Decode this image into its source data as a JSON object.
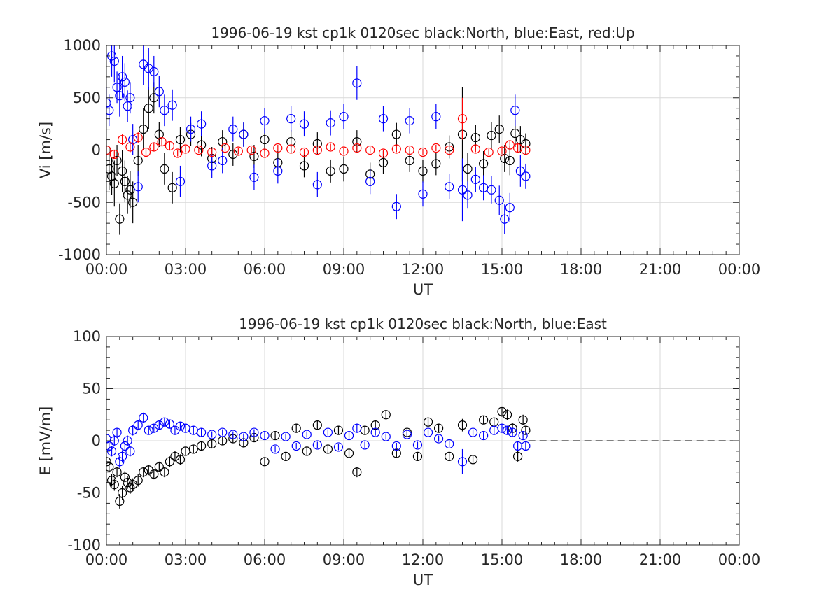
{
  "colors": {
    "north": "#000000",
    "east": "#0000ff",
    "up": "#ff0000",
    "grid": "#d9d9d9",
    "axis": "#262626",
    "zero_line": "#000000"
  },
  "chart_data": [
    {
      "type": "scatter",
      "title": "1996-06-19 kst cp1k 0120sec black:North, blue:East, red:Up",
      "xlabel": "UT",
      "ylabel": "Vi [m/s]",
      "xlim": [
        0,
        24
      ],
      "ylim": [
        -1000,
        1000
      ],
      "xticks": [
        0,
        3,
        6,
        9,
        12,
        15,
        18,
        21,
        24
      ],
      "xticklabels": [
        "00:00",
        "03:00",
        "06:00",
        "09:00",
        "12:00",
        "15:00",
        "18:00",
        "21:00",
        "00:00"
      ],
      "yticks": [
        -1000,
        -500,
        0,
        500,
        1000
      ],
      "yticklabels": [
        "-1000",
        "-500",
        "0",
        "500",
        "1000"
      ],
      "grid": true,
      "marker": "open-circle with vertical error bars",
      "reference_line": {
        "y": 0,
        "style": "dashed",
        "from_x": 16.0,
        "to_x": 24
      },
      "series": [
        {
          "name": "North",
          "color": "black",
          "x": [
            0.0,
            0.1,
            0.2,
            0.3,
            0.4,
            0.5,
            0.6,
            0.7,
            0.8,
            0.9,
            1.0,
            1.2,
            1.4,
            1.6,
            1.8,
            2.0,
            2.2,
            2.5,
            2.8,
            3.2,
            3.6,
            4.0,
            4.4,
            4.8,
            5.2,
            5.6,
            6.0,
            6.5,
            7.0,
            7.5,
            8.0,
            8.5,
            9.0,
            9.5,
            10.0,
            10.5,
            11.0,
            11.5,
            12.0,
            12.5,
            13.0,
            13.5,
            13.7,
            14.0,
            14.3,
            14.6,
            14.9,
            15.1,
            15.3,
            15.5,
            15.7,
            15.9
          ],
          "y": [
            0,
            -180,
            -250,
            -320,
            -100,
            -660,
            -200,
            -300,
            -430,
            -380,
            -500,
            -100,
            200,
            400,
            500,
            150,
            -180,
            -360,
            100,
            150,
            50,
            -80,
            80,
            -40,
            150,
            -60,
            100,
            -120,
            80,
            -150,
            60,
            -200,
            -180,
            80,
            -230,
            -120,
            150,
            -100,
            -200,
            -130,
            30,
            150,
            -180,
            120,
            -130,
            140,
            200,
            -80,
            -100,
            160,
            100,
            60
          ],
          "err": [
            100,
            200,
            180,
            220,
            150,
            150,
            200,
            200,
            180,
            180,
            200,
            150,
            200,
            200,
            150,
            120,
            150,
            150,
            120,
            110,
            110,
            110,
            110,
            110,
            110,
            110,
            110,
            110,
            110,
            110,
            110,
            110,
            120,
            110,
            110,
            110,
            110,
            110,
            110,
            110,
            110,
            450,
            150,
            120,
            120,
            130,
            130,
            130,
            140,
            130,
            130,
            100
          ]
        },
        {
          "name": "East",
          "color": "blue",
          "x": [
            0.0,
            0.1,
            0.2,
            0.3,
            0.4,
            0.5,
            0.6,
            0.7,
            0.8,
            0.9,
            1.0,
            1.2,
            1.4,
            1.6,
            1.8,
            2.0,
            2.2,
            2.5,
            2.8,
            3.2,
            3.6,
            4.0,
            4.4,
            4.8,
            5.2,
            5.6,
            6.0,
            6.5,
            7.0,
            7.5,
            8.0,
            8.5,
            9.0,
            9.5,
            10.0,
            10.5,
            11.0,
            11.5,
            12.0,
            12.5,
            13.0,
            13.5,
            13.7,
            14.0,
            14.3,
            14.6,
            14.9,
            15.1,
            15.3,
            15.5,
            15.7,
            15.9
          ],
          "y": [
            450,
            380,
            900,
            850,
            600,
            520,
            700,
            650,
            420,
            500,
            100,
            -350,
            820,
            780,
            750,
            560,
            380,
            430,
            -300,
            200,
            250,
            -150,
            -100,
            200,
            150,
            -260,
            280,
            -200,
            300,
            250,
            -330,
            260,
            320,
            640,
            -300,
            300,
            -540,
            280,
            -420,
            320,
            -350,
            -380,
            -430,
            -280,
            -360,
            -380,
            -480,
            -660,
            -550,
            380,
            -200,
            -250
          ],
          "err": [
            150,
            150,
            200,
            200,
            150,
            200,
            200,
            180,
            150,
            150,
            150,
            150,
            200,
            200,
            150,
            150,
            150,
            150,
            150,
            120,
            120,
            120,
            120,
            120,
            120,
            120,
            120,
            120,
            120,
            120,
            120,
            120,
            120,
            160,
            120,
            120,
            120,
            120,
            120,
            120,
            120,
            300,
            130,
            120,
            120,
            130,
            140,
            140,
            140,
            150,
            150,
            120
          ]
        },
        {
          "name": "Up",
          "color": "red",
          "x": [
            0.0,
            0.3,
            0.6,
            0.9,
            1.2,
            1.5,
            1.8,
            2.1,
            2.4,
            2.7,
            3.0,
            3.5,
            4.0,
            4.5,
            5.0,
            5.5,
            6.0,
            6.5,
            7.0,
            7.5,
            8.0,
            8.5,
            9.0,
            9.5,
            10.0,
            10.5,
            11.0,
            11.5,
            12.0,
            12.5,
            13.0,
            13.5,
            14.0,
            14.5,
            15.0,
            15.3,
            15.6,
            15.9
          ],
          "y": [
            0,
            -40,
            100,
            30,
            120,
            -20,
            30,
            80,
            40,
            -30,
            10,
            0,
            -20,
            20,
            -10,
            0,
            -30,
            20,
            10,
            -20,
            0,
            30,
            -10,
            20,
            0,
            -30,
            10,
            0,
            -20,
            20,
            0,
            300,
            10,
            -20,
            -10,
            50,
            20,
            0
          ],
          "err": [
            40,
            40,
            50,
            50,
            50,
            40,
            40,
            40,
            40,
            30,
            30,
            30,
            30,
            30,
            30,
            30,
            30,
            30,
            30,
            30,
            30,
            30,
            30,
            30,
            30,
            30,
            30,
            30,
            30,
            30,
            30,
            200,
            30,
            30,
            30,
            40,
            40,
            30
          ]
        }
      ]
    },
    {
      "type": "scatter",
      "title": "1996-06-19 kst cp1k 0120sec black:North, blue:East",
      "xlabel": "UT",
      "ylabel": "E [mV/m]",
      "xlim": [
        0,
        24
      ],
      "ylim": [
        -100,
        100
      ],
      "xticks": [
        0,
        3,
        6,
        9,
        12,
        15,
        18,
        21,
        24
      ],
      "xticklabels": [
        "00:00",
        "03:00",
        "06:00",
        "09:00",
        "12:00",
        "15:00",
        "18:00",
        "21:00",
        "00:00"
      ],
      "yticks": [
        -100,
        -50,
        0,
        50,
        100
      ],
      "yticklabels": [
        "-100",
        "-50",
        "0",
        "50",
        "100"
      ],
      "grid": true,
      "marker": "open-circle with vertical error bars",
      "reference_line": {
        "y": 0,
        "style": "dashed",
        "from_x": 16.0,
        "to_x": 24
      },
      "series": [
        {
          "name": "North",
          "color": "black",
          "x": [
            0.0,
            0.1,
            0.2,
            0.3,
            0.4,
            0.5,
            0.6,
            0.7,
            0.8,
            0.9,
            1.0,
            1.2,
            1.4,
            1.6,
            1.8,
            2.0,
            2.2,
            2.4,
            2.6,
            2.8,
            3.0,
            3.3,
            3.6,
            4.0,
            4.4,
            4.8,
            5.2,
            5.6,
            6.0,
            6.4,
            6.8,
            7.2,
            7.6,
            8.0,
            8.4,
            8.8,
            9.2,
            9.5,
            9.8,
            10.2,
            10.6,
            11.0,
            11.4,
            11.8,
            12.2,
            12.6,
            13.0,
            13.5,
            13.9,
            14.3,
            14.7,
            15.0,
            15.2,
            15.4,
            15.6,
            15.8,
            15.9
          ],
          "y": [
            -20,
            -25,
            -38,
            -42,
            -30,
            -58,
            -50,
            -35,
            -40,
            -45,
            -42,
            -38,
            -30,
            -28,
            -32,
            -25,
            -30,
            -20,
            -15,
            -18,
            -10,
            -8,
            -5,
            -3,
            0,
            2,
            -2,
            3,
            -20,
            5,
            -15,
            12,
            -10,
            15,
            -8,
            10,
            -12,
            -30,
            10,
            15,
            25,
            -12,
            8,
            -15,
            18,
            12,
            -15,
            15,
            -18,
            20,
            18,
            28,
            25,
            12,
            -15,
            20,
            10
          ],
          "err": [
            5,
            5,
            6,
            6,
            5,
            7,
            7,
            6,
            6,
            6,
            6,
            6,
            5,
            5,
            5,
            5,
            5,
            5,
            5,
            5,
            4,
            4,
            4,
            4,
            4,
            4,
            4,
            4,
            4,
            4,
            4,
            4,
            4,
            4,
            4,
            4,
            4,
            5,
            4,
            4,
            4,
            4,
            4,
            4,
            4,
            4,
            4,
            6,
            4,
            4,
            4,
            5,
            5,
            5,
            5,
            5,
            4
          ]
        },
        {
          "name": "East",
          "color": "blue",
          "x": [
            0.0,
            0.1,
            0.2,
            0.3,
            0.4,
            0.5,
            0.6,
            0.7,
            0.8,
            0.9,
            1.0,
            1.2,
            1.4,
            1.6,
            1.8,
            2.0,
            2.2,
            2.4,
            2.6,
            2.8,
            3.0,
            3.3,
            3.6,
            4.0,
            4.4,
            4.8,
            5.2,
            5.6,
            6.0,
            6.4,
            6.8,
            7.2,
            7.6,
            8.0,
            8.4,
            8.8,
            9.2,
            9.5,
            9.8,
            10.2,
            10.6,
            11.0,
            11.4,
            11.8,
            12.2,
            12.6,
            13.0,
            13.5,
            13.9,
            14.3,
            14.7,
            15.0,
            15.2,
            15.4,
            15.6,
            15.8,
            15.9
          ],
          "y": [
            2,
            -5,
            -10,
            0,
            8,
            -20,
            -15,
            -5,
            0,
            -10,
            10,
            15,
            22,
            10,
            12,
            15,
            18,
            16,
            10,
            14,
            12,
            10,
            8,
            6,
            8,
            6,
            4,
            8,
            5,
            -8,
            4,
            -5,
            6,
            -4,
            8,
            -6,
            5,
            12,
            -4,
            8,
            4,
            -5,
            6,
            -4,
            8,
            2,
            -3,
            -20,
            8,
            5,
            10,
            12,
            10,
            8,
            -5,
            5,
            -5
          ],
          "err": [
            4,
            4,
            5,
            5,
            4,
            6,
            6,
            5,
            5,
            5,
            5,
            5,
            5,
            4,
            4,
            4,
            4,
            4,
            4,
            4,
            4,
            4,
            4,
            3,
            3,
            3,
            3,
            3,
            3,
            3,
            3,
            3,
            3,
            3,
            3,
            3,
            3,
            4,
            3,
            3,
            3,
            3,
            3,
            3,
            3,
            3,
            3,
            12,
            3,
            3,
            4,
            4,
            4,
            4,
            4,
            4,
            4
          ]
        }
      ]
    }
  ]
}
